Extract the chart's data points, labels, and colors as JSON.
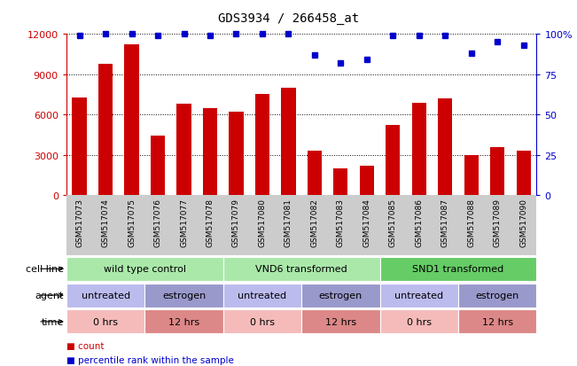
{
  "title": "GDS3934 / 266458_at",
  "samples": [
    "GSM517073",
    "GSM517074",
    "GSM517075",
    "GSM517076",
    "GSM517077",
    "GSM517078",
    "GSM517079",
    "GSM517080",
    "GSM517081",
    "GSM517082",
    "GSM517083",
    "GSM517084",
    "GSM517085",
    "GSM517086",
    "GSM517087",
    "GSM517088",
    "GSM517089",
    "GSM517090"
  ],
  "counts": [
    7300,
    9800,
    11200,
    4400,
    6800,
    6500,
    6200,
    7500,
    8000,
    3300,
    2000,
    2200,
    5200,
    6900,
    7200,
    3000,
    3600,
    3300
  ],
  "percentile_ranks": [
    99,
    100,
    100,
    99,
    100,
    99,
    100,
    100,
    100,
    87,
    82,
    84,
    99,
    99,
    99,
    88,
    95,
    93
  ],
  "bar_color": "#cc0000",
  "dot_color": "#0000cc",
  "ylim_left": [
    0,
    12000
  ],
  "ylim_right": [
    0,
    100
  ],
  "yticks_left": [
    0,
    3000,
    6000,
    9000,
    12000
  ],
  "yticks_right": [
    0,
    25,
    50,
    75,
    100
  ],
  "ytick_labels_right": [
    "0",
    "25",
    "50",
    "75",
    "100%"
  ],
  "cell_line_groups": [
    {
      "label": "wild type control",
      "start": 0,
      "end": 6,
      "color": "#aae8aa"
    },
    {
      "label": "VND6 transformed",
      "start": 6,
      "end": 12,
      "color": "#aae8aa"
    },
    {
      "label": "SND1 transformed",
      "start": 12,
      "end": 18,
      "color": "#66cc66"
    }
  ],
  "agent_groups": [
    {
      "label": "untreated",
      "start": 0,
      "end": 3,
      "color": "#bbbbee"
    },
    {
      "label": "estrogen",
      "start": 3,
      "end": 6,
      "color": "#9999cc"
    },
    {
      "label": "untreated",
      "start": 6,
      "end": 9,
      "color": "#bbbbee"
    },
    {
      "label": "estrogen",
      "start": 9,
      "end": 12,
      "color": "#9999cc"
    },
    {
      "label": "untreated",
      "start": 12,
      "end": 15,
      "color": "#bbbbee"
    },
    {
      "label": "estrogen",
      "start": 15,
      "end": 18,
      "color": "#9999cc"
    }
  ],
  "time_groups": [
    {
      "label": "0 hrs",
      "start": 0,
      "end": 3,
      "color": "#f5bbbb"
    },
    {
      "label": "12 hrs",
      "start": 3,
      "end": 6,
      "color": "#dd8888"
    },
    {
      "label": "0 hrs",
      "start": 6,
      "end": 9,
      "color": "#f5bbbb"
    },
    {
      "label": "12 hrs",
      "start": 9,
      "end": 12,
      "color": "#dd8888"
    },
    {
      "label": "0 hrs",
      "start": 12,
      "end": 15,
      "color": "#f5bbbb"
    },
    {
      "label": "12 hrs",
      "start": 15,
      "end": 18,
      "color": "#dd8888"
    }
  ],
  "tick_area_color": "#cccccc",
  "background_color": "#ffffff",
  "n_samples": 18
}
